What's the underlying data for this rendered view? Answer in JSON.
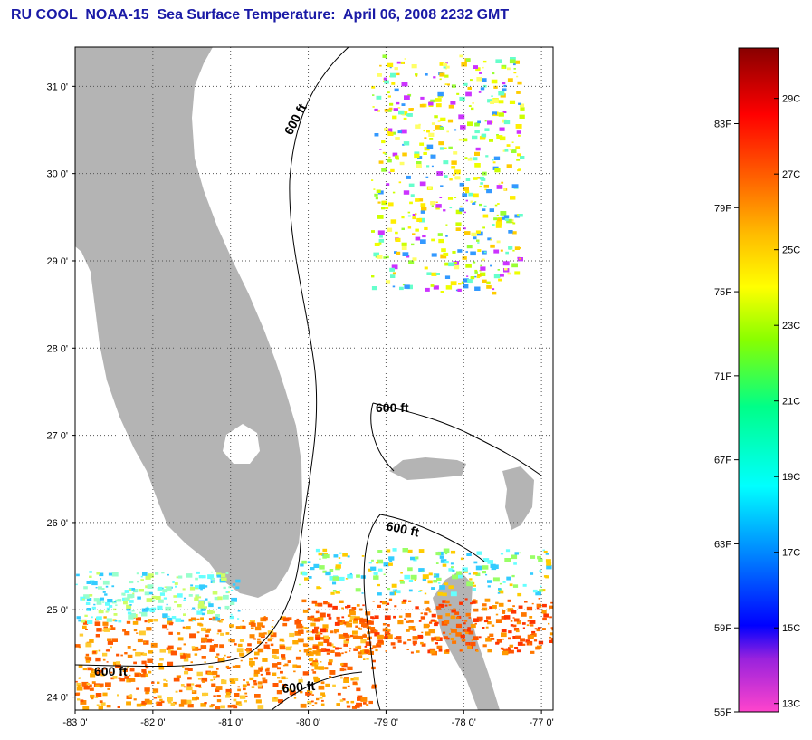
{
  "title": "RU COOL  NOAA-15  Sea Surface Temperature:  April 06, 2008 2232 GMT",
  "map": {
    "lat_ticks": [
      "31 0'",
      "30 0'",
      "29 0'",
      "28 0'",
      "27 0'",
      "26 0'",
      "25 0'",
      "24 0'"
    ],
    "lat_values": [
      31,
      30,
      29,
      28,
      27,
      26,
      25,
      24
    ],
    "lon_ticks": [
      "-83 0'",
      "-82 0'",
      "-81 0'",
      "-80 0'",
      "-79 0'",
      "-78 0'",
      "-77 0'"
    ],
    "lon_values": [
      -83,
      -82,
      -81,
      -80,
      -79,
      -78,
      -77
    ],
    "lat_range": [
      23.85,
      31.45
    ],
    "lon_range": [
      -83,
      -76.85
    ],
    "contour_label": "600 ft",
    "land_color": "#b4b4b4",
    "grid": true
  },
  "colorbar": {
    "f_labels": [
      "83F",
      "79F",
      "75F",
      "71F",
      "67F",
      "63F",
      "59F",
      "55F"
    ],
    "f_values": [
      83,
      79,
      75,
      71,
      67,
      63,
      59,
      55
    ],
    "c_labels": [
      "29C",
      "27C",
      "25C",
      "23C",
      "21C",
      "19C",
      "17C",
      "15C",
      "13C"
    ],
    "c_values": [
      29,
      27,
      25,
      23,
      21,
      19,
      17,
      15,
      13
    ],
    "range_f": [
      55,
      86.6
    ]
  }
}
